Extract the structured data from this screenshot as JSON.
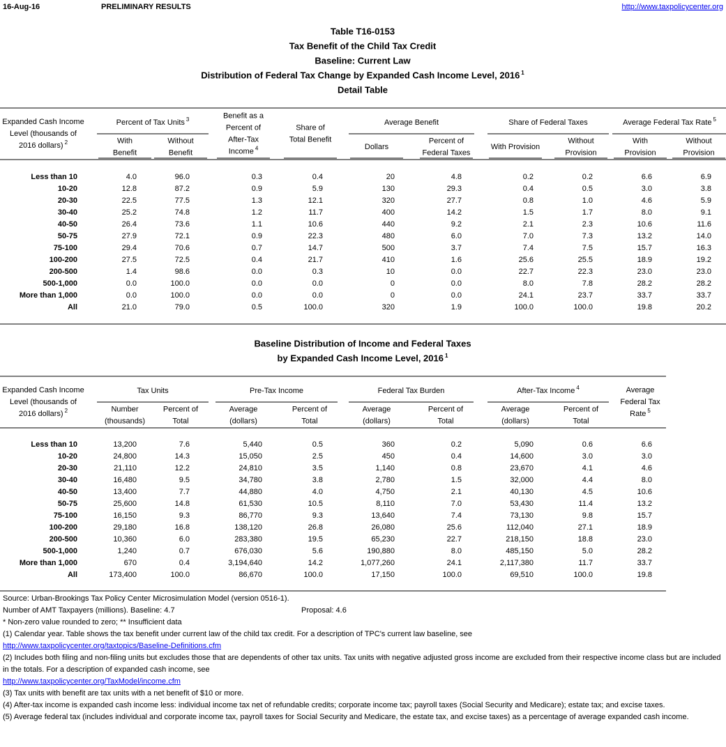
{
  "header": {
    "date": "16-Aug-16",
    "status": "PRELIMINARY RESULTS",
    "url": "http://www.taxpolicycenter.org"
  },
  "titles": [
    {
      "text": "Table T16-0153"
    },
    {
      "text": "Tax Benefit of the Child Tax Credit"
    },
    {
      "text": "Baseline: Current Law"
    },
    {
      "text": "Distribution of Federal Tax Change by Expanded Cash Income Level, 2016",
      "note": "1"
    },
    {
      "text": "Detail Table"
    }
  ],
  "table1": {
    "stub": {
      "lines": [
        "Expanded Cash Income",
        "Level (thousands of",
        "2016 dollars)"
      ],
      "note": "2"
    },
    "headers": [
      {
        "lines": [
          "Percent of Tax Units"
        ],
        "note": "3",
        "sub": [
          {
            "lines": [
              "With",
              "Benefit"
            ]
          },
          {
            "lines": [
              "Without",
              "Benefit"
            ]
          }
        ]
      },
      {
        "lines": [
          "Benefit as a",
          "Percent of",
          "After-Tax",
          "Income"
        ],
        "note": "4"
      },
      {
        "lines": [
          "Share of",
          "Total Benefit"
        ]
      },
      {
        "lines": [
          "Average Benefit"
        ],
        "sub": [
          {
            "lines": [
              "Dollars"
            ]
          },
          {
            "lines": [
              "Percent of",
              "Federal Taxes"
            ]
          }
        ]
      },
      {
        "lines": [
          "Share of Federal Taxes"
        ],
        "sub": [
          {
            "lines": [
              "With Provision"
            ]
          },
          {
            "lines": [
              "Without",
              "Provision"
            ]
          }
        ]
      },
      {
        "lines": [
          "Average Federal Tax Rate"
        ],
        "note": "5",
        "sub": [
          {
            "lines": [
              "With",
              "Provision"
            ]
          },
          {
            "lines": [
              "Without",
              "Provision"
            ]
          }
        ]
      }
    ],
    "rows": [
      [
        "Less than 10",
        "4.0",
        "96.0",
        "0.3",
        "0.4",
        "20",
        "4.8",
        "0.2",
        "0.2",
        "6.6",
        "6.9"
      ],
      [
        "10-20",
        "12.8",
        "87.2",
        "0.9",
        "5.9",
        "130",
        "29.3",
        "0.4",
        "0.5",
        "3.0",
        "3.8"
      ],
      [
        "20-30",
        "22.5",
        "77.5",
        "1.3",
        "12.1",
        "320",
        "27.7",
        "0.8",
        "1.0",
        "4.6",
        "5.9"
      ],
      [
        "30-40",
        "25.2",
        "74.8",
        "1.2",
        "11.7",
        "400",
        "14.2",
        "1.5",
        "1.7",
        "8.0",
        "9.1"
      ],
      [
        "40-50",
        "26.4",
        "73.6",
        "1.1",
        "10.6",
        "440",
        "9.2",
        "2.1",
        "2.3",
        "10.6",
        "11.6"
      ],
      [
        "50-75",
        "27.9",
        "72.1",
        "0.9",
        "22.3",
        "480",
        "6.0",
        "7.0",
        "7.3",
        "13.2",
        "14.0"
      ],
      [
        "75-100",
        "29.4",
        "70.6",
        "0.7",
        "14.7",
        "500",
        "3.7",
        "7.4",
        "7.5",
        "15.7",
        "16.3"
      ],
      [
        "100-200",
        "27.5",
        "72.5",
        "0.4",
        "21.7",
        "410",
        "1.6",
        "25.6",
        "25.5",
        "18.9",
        "19.2"
      ],
      [
        "200-500",
        "1.4",
        "98.6",
        "0.0",
        "0.3",
        "10",
        "0.0",
        "22.7",
        "22.3",
        "23.0",
        "23.0"
      ],
      [
        "500-1,000",
        "0.0",
        "100.0",
        "0.0",
        "0.0",
        "0",
        "0.0",
        "8.0",
        "7.8",
        "28.2",
        "28.2"
      ],
      [
        "More than 1,000",
        "0.0",
        "100.0",
        "0.0",
        "0.0",
        "0",
        "0.0",
        "24.1",
        "23.7",
        "33.7",
        "33.7"
      ],
      [
        "All",
        "21.0",
        "79.0",
        "0.5",
        "100.0",
        "320",
        "1.9",
        "100.0",
        "100.0",
        "19.8",
        "20.2"
      ]
    ]
  },
  "table2_titles": [
    {
      "text": "Baseline Distribution of Income and Federal Taxes"
    },
    {
      "text": "by Expanded Cash Income Level, 2016",
      "note": "1"
    }
  ],
  "table2": {
    "stub": {
      "lines": [
        "Expanded Cash Income",
        "Level (thousands of",
        "2016 dollars)"
      ],
      "note": "2"
    },
    "headers": [
      {
        "lines": [
          "Tax Units"
        ],
        "sub": [
          {
            "lines": [
              "Number",
              "(thousands)"
            ]
          },
          {
            "lines": [
              "Percent of",
              "Total"
            ]
          }
        ]
      },
      {
        "lines": [
          "Pre-Tax Income"
        ],
        "sub": [
          {
            "lines": [
              "Average",
              "(dollars)"
            ]
          },
          {
            "lines": [
              "Percent of",
              "Total"
            ]
          }
        ]
      },
      {
        "lines": [
          "Federal Tax Burden"
        ],
        "sub": [
          {
            "lines": [
              "Average",
              "(dollars)"
            ]
          },
          {
            "lines": [
              "Percent of",
              "Total"
            ]
          }
        ]
      },
      {
        "lines": [
          "After-Tax Income"
        ],
        "note": "4",
        "sub": [
          {
            "lines": [
              "Average",
              "(dollars)"
            ]
          },
          {
            "lines": [
              "Percent of",
              "Total"
            ]
          }
        ]
      },
      {
        "lines": [
          "Average",
          "Federal Tax",
          "Rate"
        ],
        "note": "5"
      }
    ],
    "rows": [
      [
        "Less than 10",
        "13,200",
        "7.6",
        "5,440",
        "0.5",
        "360",
        "0.2",
        "5,090",
        "0.6",
        "6.6"
      ],
      [
        "10-20",
        "24,800",
        "14.3",
        "15,050",
        "2.5",
        "450",
        "0.4",
        "14,600",
        "3.0",
        "3.0"
      ],
      [
        "20-30",
        "21,110",
        "12.2",
        "24,810",
        "3.5",
        "1,140",
        "0.8",
        "23,670",
        "4.1",
        "4.6"
      ],
      [
        "30-40",
        "16,480",
        "9.5",
        "34,780",
        "3.8",
        "2,780",
        "1.5",
        "32,000",
        "4.4",
        "8.0"
      ],
      [
        "40-50",
        "13,400",
        "7.7",
        "44,880",
        "4.0",
        "4,750",
        "2.1",
        "40,130",
        "4.5",
        "10.6"
      ],
      [
        "50-75",
        "25,600",
        "14.8",
        "61,530",
        "10.5",
        "8,110",
        "7.0",
        "53,430",
        "11.4",
        "13.2"
      ],
      [
        "75-100",
        "16,150",
        "9.3",
        "86,770",
        "9.3",
        "13,640",
        "7.4",
        "73,130",
        "9.8",
        "15.7"
      ],
      [
        "100-200",
        "29,180",
        "16.8",
        "138,120",
        "26.8",
        "26,080",
        "25.6",
        "112,040",
        "27.1",
        "18.9"
      ],
      [
        "200-500",
        "10,360",
        "6.0",
        "283,380",
        "19.5",
        "65,230",
        "22.7",
        "218,150",
        "18.8",
        "23.0"
      ],
      [
        "500-1,000",
        "1,240",
        "0.7",
        "676,030",
        "5.6",
        "190,880",
        "8.0",
        "485,150",
        "5.0",
        "28.2"
      ],
      [
        "More than 1,000",
        "670",
        "0.4",
        "3,194,640",
        "14.2",
        "1,077,260",
        "24.1",
        "2,117,380",
        "11.7",
        "33.7"
      ],
      [
        "All",
        "173,400",
        "100.0",
        "86,670",
        "100.0",
        "17,150",
        "100.0",
        "69,510",
        "100.0",
        "19.8"
      ]
    ]
  },
  "footnotes": {
    "source": "Source: Urban-Brookings Tax Policy Center Microsimulation Model (version 0516-1).",
    "amt": {
      "baseline": "Number of AMT Taxpayers (millions).  Baseline: 4.7",
      "proposal": "Proposal: 4.6"
    },
    "legend": "* Non-zero value rounded to zero; ** Insufficient data",
    "notes": [
      {
        "text": "(1) Calendar year. Table shows the tax benefit under current law of the child tax credit. For a description of TPC's current law baseline, see",
        "link": "http://www.taxpolicycenter.org/taxtopics/Baseline-Definitions.cfm"
      },
      {
        "text": "(2) Includes both filing and non-filing units but excludes those that are dependents of other tax units. Tax units with negative adjusted gross income are excluded from their respective income class but are included in the totals. For a description of expanded cash income, see",
        "link": "http://www.taxpolicycenter.org/TaxModel/income.cfm"
      },
      {
        "text": "(3) Tax units with benefit are tax units with a net benefit of $10 or more."
      },
      {
        "text": "(4) After-tax income is expanded cash income less: individual income tax net of refundable credits; corporate income tax; payroll taxes (Social Security and Medicare); estate tax; and excise taxes."
      },
      {
        "text": "(5) Average federal tax (includes individual and corporate income tax, payroll taxes for Social Security and Medicare, the estate tax, and excise taxes) as a percentage of average expanded cash income."
      }
    ]
  }
}
